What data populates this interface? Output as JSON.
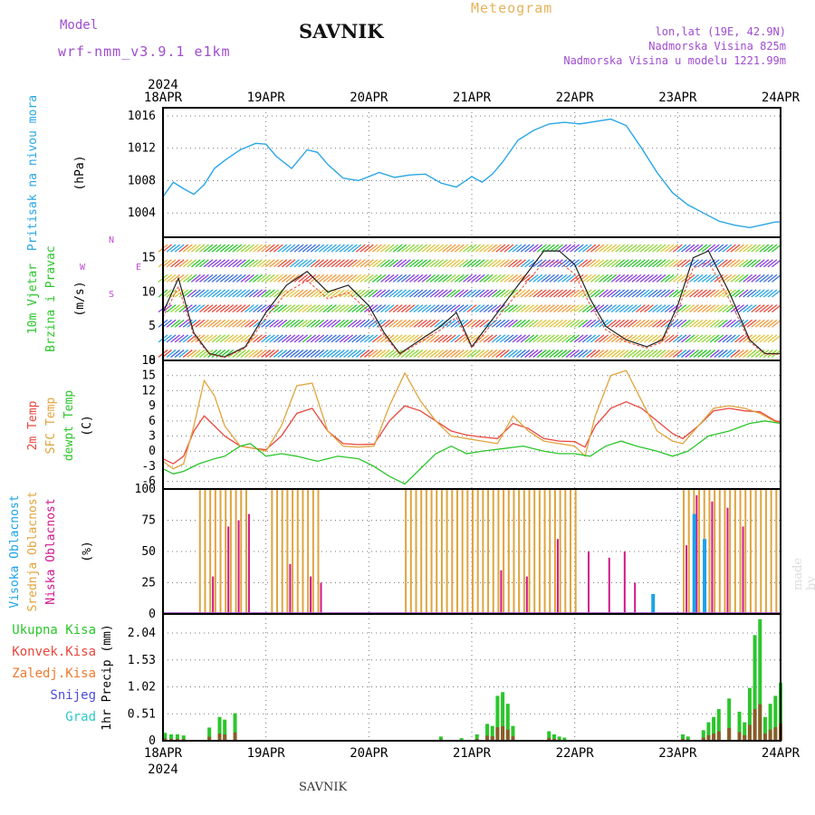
{
  "header": {
    "model_label": "Model",
    "model_name": "wrf-nmm_v3.9.1 e1km",
    "station": "SAVNIK",
    "meteogram": "Meteogram",
    "lonlat": "lon,lat (19E, 42.9N)",
    "altitude": "Nadmorska Visina 825m",
    "model_altitude": "Nadmorska Visina u modelu 1221.99m",
    "bottom_title": "SAVNIK",
    "watermark": "made by Angel"
  },
  "time_axis": {
    "year": "2024",
    "labels": [
      "18APR",
      "19APR",
      "20APR",
      "21APR",
      "22APR",
      "23APR",
      "24APR"
    ]
  },
  "colors": {
    "pressure": "#29a6e6",
    "wind_fast": "#e94b3c",
    "temp2m": "#e8473d",
    "sfc": "#e0a43e",
    "dewpt": "#2bc62b",
    "cloud_high": "#1aa3e8",
    "cloud_mid": "#e0a43e",
    "cloud_low": "#d1178a",
    "precip_total": "#2bc62b",
    "precip_conv": "#e8473d",
    "precip_frozen": "#f07a2e",
    "snow": "#4b4bdc",
    "graupel": "#2ec8c8"
  },
  "chart_data": [
    {
      "type": "line",
      "panel": "pressure",
      "ylabel": "Pritisak na nivou mora",
      "unit": "(hPa)",
      "yticks": [
        "1016",
        "1012",
        "1008",
        "1004"
      ],
      "ylim": [
        1001,
        1017
      ],
      "x_days": [
        0,
        0.1,
        0.2,
        0.3,
        0.4,
        0.5,
        0.6,
        0.75,
        0.9,
        1.0,
        1.1,
        1.25,
        1.4,
        1.5,
        1.6,
        1.75,
        1.9,
        2.0,
        2.1,
        2.25,
        2.4,
        2.55,
        2.7,
        2.85,
        3.0,
        3.1,
        3.2,
        3.3,
        3.45,
        3.6,
        3.75,
        3.9,
        4.05,
        4.2,
        4.35,
        4.5,
        4.65,
        4.8,
        4.95,
        5.1,
        5.25,
        5.4,
        5.55,
        5.7,
        5.85,
        5.95,
        6.0
      ],
      "values": [
        1006.0,
        1007.8,
        1007.0,
        1006.3,
        1007.5,
        1009.5,
        1010.5,
        1011.8,
        1012.6,
        1012.5,
        1011.0,
        1009.5,
        1011.8,
        1011.5,
        1010.0,
        1008.3,
        1008.0,
        1008.5,
        1009.0,
        1008.4,
        1008.7,
        1008.8,
        1007.7,
        1007.2,
        1008.5,
        1007.8,
        1008.8,
        1010.3,
        1013.0,
        1014.2,
        1015.0,
        1015.2,
        1015.0,
        1015.3,
        1015.6,
        1014.8,
        1012.0,
        1009.0,
        1006.5,
        1005.0,
        1004.0,
        1003.0,
        1002.5,
        1002.2,
        1002.6,
        1002.9,
        1002.9
      ]
    },
    {
      "type": "line",
      "panel": "wind",
      "ylabel": "10m Vjetar",
      "ylabel2": "Brzina i Pravac",
      "unit": "(m/s)",
      "compass": {
        "n": "N",
        "w": "W",
        "e": "E",
        "s": "S"
      },
      "yticks": [
        "15",
        "10",
        "5",
        "0"
      ],
      "ylim": [
        0,
        18
      ],
      "x_days": [
        0,
        0.15,
        0.3,
        0.45,
        0.6,
        0.8,
        1.0,
        1.2,
        1.4,
        1.6,
        1.8,
        2.0,
        2.15,
        2.3,
        2.5,
        2.7,
        2.85,
        3.0,
        3.15,
        3.3,
        3.5,
        3.7,
        3.85,
        4.0,
        4.15,
        4.3,
        4.5,
        4.7,
        4.85,
        5.0,
        5.15,
        5.3,
        5.5,
        5.7,
        5.85,
        6.0
      ],
      "values": [
        7,
        12,
        4,
        1,
        0.5,
        2,
        7,
        11,
        13,
        10,
        11,
        8,
        4,
        1,
        3,
        5,
        7,
        2,
        5,
        8,
        12,
        16,
        16,
        14,
        9,
        5,
        3,
        2,
        3,
        8,
        15,
        16,
        10,
        3,
        1,
        1
      ]
    },
    {
      "type": "line",
      "panel": "temperature",
      "ylabel": "2m Temp",
      "ylabel2": "SFC Temp",
      "ylabel3": "dewpt Temp",
      "unit": "(C)",
      "yticks": [
        "18",
        "15",
        "12",
        "9",
        "6",
        "3",
        "0",
        "-3",
        "-6"
      ],
      "ylim": [
        -7.5,
        18
      ],
      "series": [
        {
          "key": "temp2m",
          "x_days": [
            0,
            0.1,
            0.2,
            0.3,
            0.4,
            0.5,
            0.6,
            0.75,
            0.9,
            1.0,
            1.15,
            1.3,
            1.45,
            1.6,
            1.75,
            1.9,
            2.05,
            2.2,
            2.35,
            2.5,
            2.65,
            2.8,
            2.95,
            3.1,
            3.25,
            3.4,
            3.55,
            3.7,
            3.85,
            4.0,
            4.1,
            4.2,
            4.35,
            4.5,
            4.65,
            4.8,
            4.95,
            5.05,
            5.2,
            5.35,
            5.5,
            5.65,
            5.8,
            5.95,
            6.0
          ],
          "values": [
            -1.5,
            -2.5,
            -1.0,
            4.0,
            7.0,
            5.0,
            3.0,
            1.0,
            0.5,
            0.3,
            3.0,
            7.5,
            8.5,
            4.0,
            1.5,
            1.3,
            1.4,
            6.0,
            9.0,
            8.0,
            6.0,
            4.0,
            3.2,
            2.8,
            2.5,
            5.5,
            4.5,
            2.5,
            2.0,
            1.9,
            0.8,
            5.0,
            8.5,
            9.8,
            8.5,
            6.0,
            3.5,
            2.5,
            5.0,
            8.0,
            8.5,
            8.0,
            7.8,
            6.0,
            5.8
          ]
        },
        {
          "key": "sfc",
          "x_days": [
            0,
            0.1,
            0.2,
            0.3,
            0.4,
            0.5,
            0.6,
            0.75,
            0.9,
            1.0,
            1.15,
            1.3,
            1.45,
            1.6,
            1.75,
            1.9,
            2.05,
            2.2,
            2.35,
            2.5,
            2.65,
            2.8,
            2.95,
            3.1,
            3.25,
            3.4,
            3.55,
            3.7,
            3.85,
            4.0,
            4.1,
            4.2,
            4.35,
            4.5,
            4.65,
            4.8,
            4.95,
            5.05,
            5.2,
            5.35,
            5.5,
            5.65,
            5.8,
            5.95,
            6.0
          ],
          "values": [
            -2.0,
            -3.5,
            -2.5,
            5.0,
            14.0,
            11.0,
            5.0,
            1.0,
            0.5,
            0.0,
            5.0,
            13.0,
            13.5,
            4.0,
            1.0,
            0.8,
            1.0,
            9.0,
            15.5,
            10.0,
            6.0,
            3.0,
            2.5,
            2.0,
            1.5,
            7.0,
            4.0,
            2.0,
            1.5,
            1.0,
            -1.0,
            7.0,
            15.0,
            16.0,
            10.0,
            4.0,
            2.0,
            1.5,
            5.0,
            8.5,
            9.0,
            8.5,
            7.5,
            5.8,
            5.5
          ]
        },
        {
          "key": "dewpt",
          "x_days": [
            0,
            0.1,
            0.2,
            0.35,
            0.5,
            0.6,
            0.75,
            0.85,
            1.0,
            1.15,
            1.3,
            1.5,
            1.7,
            1.9,
            2.05,
            2.2,
            2.35,
            2.5,
            2.65,
            2.8,
            2.95,
            3.1,
            3.3,
            3.5,
            3.7,
            3.85,
            4.0,
            4.15,
            4.3,
            4.45,
            4.6,
            4.8,
            4.95,
            5.1,
            5.3,
            5.5,
            5.7,
            5.85,
            6.0
          ],
          "values": [
            -3.5,
            -4.5,
            -4.0,
            -2.5,
            -1.5,
            -1.0,
            1.0,
            1.5,
            -1.0,
            -0.5,
            -1.0,
            -2.0,
            -1.0,
            -1.5,
            -3.0,
            -5.0,
            -6.5,
            -3.5,
            -0.5,
            1.0,
            -0.5,
            0.0,
            0.5,
            1.0,
            0.0,
            -0.5,
            -0.5,
            -1.0,
            1.0,
            2.0,
            1.0,
            0.0,
            -1.0,
            0.0,
            3.0,
            4.0,
            5.5,
            6.0,
            5.5
          ]
        }
      ]
    },
    {
      "type": "bar",
      "panel": "clouds",
      "ylabel": "Visoka Oblacnost",
      "ylabel2": "Srednja Oblacnost",
      "ylabel3": "Niska Oblacnost",
      "unit": "(%)",
      "yticks": [
        "100",
        "75",
        "50",
        "25",
        "0"
      ],
      "ylim": [
        0,
        100
      ],
      "mid_full_ranges": [
        [
          0.35,
          0.85
        ],
        [
          1.05,
          1.55
        ],
        [
          2.35,
          3.0
        ],
        [
          3.0,
          4.0
        ],
        [
          5.05,
          5.95
        ]
      ],
      "low_bars": [
        [
          0.45,
          30
        ],
        [
          0.6,
          70
        ],
        [
          0.7,
          75
        ],
        [
          0.8,
          80
        ],
        [
          1.2,
          40
        ],
        [
          1.4,
          30
        ],
        [
          1.5,
          25
        ],
        [
          3.25,
          35
        ],
        [
          3.5,
          30
        ],
        [
          3.8,
          60
        ],
        [
          4.1,
          50
        ],
        [
          4.3,
          45
        ],
        [
          4.45,
          50
        ],
        [
          4.55,
          25
        ],
        [
          5.05,
          55
        ],
        [
          5.15,
          95
        ],
        [
          5.3,
          90
        ],
        [
          5.45,
          85
        ],
        [
          5.6,
          70
        ]
      ],
      "high_bars": [
        [
          4.7,
          16
        ],
        [
          5.1,
          80
        ],
        [
          5.2,
          60
        ]
      ]
    },
    {
      "type": "bar",
      "panel": "precip",
      "ylabel": "1hr Precip",
      "unit": "(mm)",
      "legend": [
        "Ukupna Kisa",
        "Konvek.Kisa",
        "Zaledj.Kisa",
        "Snijeg",
        "Grad"
      ],
      "yticks": [
        "2.04",
        "1.53",
        "1.02",
        "0.51",
        "0"
      ],
      "ylim": [
        0,
        2.4
      ],
      "bars": [
        [
          0.02,
          0.15
        ],
        [
          0.08,
          0.12
        ],
        [
          0.14,
          0.12
        ],
        [
          0.2,
          0.1
        ],
        [
          0.45,
          0.25
        ],
        [
          0.55,
          0.45
        ],
        [
          0.6,
          0.4
        ],
        [
          0.7,
          0.52
        ],
        [
          2.7,
          0.08
        ],
        [
          2.9,
          0.05
        ],
        [
          3.05,
          0.12
        ],
        [
          3.15,
          0.32
        ],
        [
          3.2,
          0.28
        ],
        [
          3.25,
          0.85
        ],
        [
          3.3,
          0.92
        ],
        [
          3.35,
          0.7
        ],
        [
          3.4,
          0.28
        ],
        [
          3.75,
          0.18
        ],
        [
          3.8,
          0.12
        ],
        [
          3.85,
          0.08
        ],
        [
          3.9,
          0.06
        ],
        [
          5.05,
          0.12
        ],
        [
          5.1,
          0.08
        ],
        [
          5.25,
          0.2
        ],
        [
          5.3,
          0.35
        ],
        [
          5.35,
          0.45
        ],
        [
          5.4,
          0.6
        ],
        [
          5.5,
          0.8
        ],
        [
          5.6,
          0.55
        ],
        [
          5.65,
          0.35
        ],
        [
          5.7,
          1.0
        ],
        [
          5.75,
          2.0
        ],
        [
          5.8,
          2.3
        ],
        [
          5.85,
          0.45
        ],
        [
          5.9,
          0.7
        ],
        [
          5.95,
          0.85
        ],
        [
          6.0,
          1.1
        ]
      ]
    }
  ]
}
